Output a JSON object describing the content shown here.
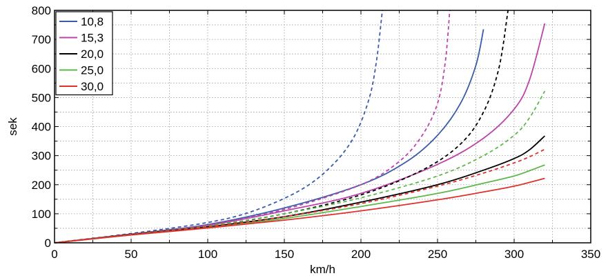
{
  "chart_data": {
    "type": "line",
    "xlabel": "km/h",
    "ylabel": "sek",
    "xlim": [
      0,
      350
    ],
    "ylim": [
      0,
      800
    ],
    "xticks": [
      0,
      50,
      100,
      150,
      200,
      250,
      300,
      350
    ],
    "yticks": [
      0,
      100,
      200,
      300,
      400,
      500,
      600,
      700,
      800
    ],
    "xtick_labels": [
      "0",
      "50",
      "100",
      "150",
      "200",
      "250",
      "300",
      "350"
    ],
    "ytick_labels": [
      "0",
      "100",
      "200",
      "300",
      "400",
      "500",
      "600",
      "700",
      "800"
    ],
    "grid": "dotted",
    "legend_position": "top-left",
    "series": [
      {
        "name": "10,8",
        "color": "#3a5ba9",
        "style": "solid",
        "x": [
          0,
          50,
          100,
          150,
          200,
          230,
          250,
          265,
          275,
          280
        ],
        "y": [
          0,
          30,
          63,
          120,
          200,
          280,
          370,
          480,
          610,
          735
        ]
      },
      {
        "name": "10,8",
        "color": "#3a5ba9",
        "style": "dashed",
        "x": [
          0,
          50,
          100,
          130,
          160,
          180,
          195,
          205,
          210,
          214
        ],
        "y": [
          0,
          32,
          70,
          110,
          180,
          260,
          360,
          490,
          620,
          800
        ]
      },
      {
        "name": "15,3",
        "color": "#bb44a8",
        "style": "solid",
        "x": [
          0,
          50,
          100,
          150,
          200,
          250,
          280,
          300,
          310,
          320
        ],
        "y": [
          0,
          30,
          60,
          110,
          170,
          270,
          360,
          460,
          560,
          755
        ]
      },
      {
        "name": "15,3",
        "color": "#bb44a8",
        "style": "dashed",
        "x": [
          0,
          50,
          100,
          150,
          200,
          225,
          240,
          250,
          255,
          258
        ],
        "y": [
          0,
          30,
          62,
          115,
          200,
          280,
          370,
          480,
          620,
          800
        ]
      },
      {
        "name": "20,0",
        "color": "#000000",
        "style": "solid",
        "x": [
          0,
          50,
          100,
          150,
          200,
          250,
          280,
          300,
          310,
          320
        ],
        "y": [
          0,
          28,
          55,
          90,
          140,
          200,
          250,
          290,
          320,
          368
        ]
      },
      {
        "name": "20,0",
        "color": "#000000",
        "style": "dashed",
        "x": [
          0,
          50,
          100,
          150,
          200,
          240,
          265,
          280,
          290,
          296
        ],
        "y": [
          0,
          30,
          58,
          100,
          165,
          250,
          340,
          450,
          600,
          800
        ]
      },
      {
        "name": "25,0",
        "color": "#5cb84a",
        "style": "solid",
        "x": [
          0,
          50,
          100,
          150,
          200,
          250,
          280,
          300,
          310,
          320
        ],
        "y": [
          0,
          27,
          52,
          84,
          125,
          170,
          205,
          230,
          248,
          268
        ]
      },
      {
        "name": "25,0",
        "color": "#5cb84a",
        "style": "dashed",
        "x": [
          0,
          50,
          100,
          150,
          200,
          250,
          280,
          300,
          310,
          320
        ],
        "y": [
          0,
          29,
          58,
          100,
          155,
          230,
          300,
          370,
          430,
          522
        ]
      },
      {
        "name": "30,0",
        "color": "#e0302a",
        "style": "solid",
        "x": [
          0,
          50,
          100,
          150,
          200,
          250,
          280,
          300,
          310,
          320
        ],
        "y": [
          0,
          27,
          51,
          78,
          110,
          148,
          175,
          195,
          208,
          222
        ]
      },
      {
        "name": "30,0",
        "color": "#e0302a",
        "style": "dashed",
        "x": [
          0,
          50,
          100,
          150,
          200,
          250,
          280,
          300,
          310,
          320
        ],
        "y": [
          0,
          28,
          55,
          90,
          135,
          195,
          240,
          275,
          296,
          322
        ]
      }
    ],
    "legend": [
      {
        "label": "10,8",
        "color": "#3a5ba9"
      },
      {
        "label": "15,3",
        "color": "#bb44a8"
      },
      {
        "label": "20,0",
        "color": "#000000"
      },
      {
        "label": "25,0",
        "color": "#5cb84a"
      },
      {
        "label": "30,0",
        "color": "#e0302a"
      }
    ]
  }
}
